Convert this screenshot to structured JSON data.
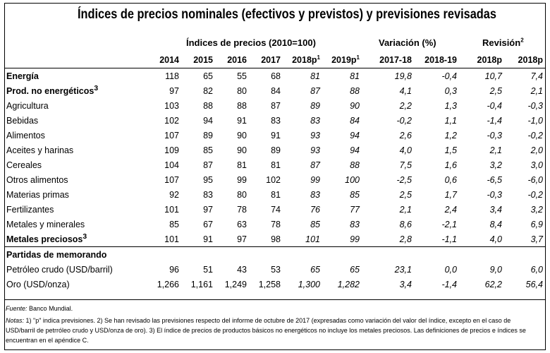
{
  "title": "Índices de precios nominales (efectivos y previstos) y previsiones revisadas",
  "group_headers": {
    "indices": "Índices de precios (2010=100)",
    "variacion": "Variación (%)",
    "revision": "Revisión",
    "revision_sup": "2"
  },
  "columns": [
    "2014",
    "2015",
    "2016",
    "2017",
    "2018p",
    "2019p",
    "2017-18",
    "2018-19",
    "2018p",
    "2018p"
  ],
  "column_sups": [
    "",
    "",
    "",
    "",
    "1",
    "1",
    "",
    "",
    "",
    ""
  ],
  "rows": [
    {
      "label": "Energía",
      "sup": "",
      "bold": true,
      "indent": 0,
      "values": [
        "118",
        "65",
        "55",
        "68",
        "81",
        "81",
        "19,8",
        "-0,4",
        "10,7",
        "7,4"
      ]
    },
    {
      "label": "Prod. no energéticos",
      "sup": "3",
      "bold": true,
      "indent": 0,
      "values": [
        "97",
        "82",
        "80",
        "84",
        "87",
        "88",
        "4,1",
        "0,3",
        "2,5",
        "2,1"
      ]
    },
    {
      "label": "Agricultura",
      "sup": "",
      "bold": false,
      "indent": 1,
      "values": [
        "103",
        "88",
        "88",
        "87",
        "89",
        "90",
        "2,2",
        "1,3",
        "-0,4",
        "-0,3"
      ]
    },
    {
      "label": "Bebidas",
      "sup": "",
      "bold": false,
      "indent": 2,
      "values": [
        "102",
        "94",
        "91",
        "83",
        "83",
        "84",
        "-0,2",
        "1,1",
        "-1,4",
        "-1,0"
      ]
    },
    {
      "label": "Alimentos",
      "sup": "",
      "bold": false,
      "indent": 2,
      "values": [
        "107",
        "89",
        "90",
        "91",
        "93",
        "94",
        "2,6",
        "1,2",
        "-0,3",
        "-0,2"
      ]
    },
    {
      "label": "Aceites y harinas",
      "sup": "",
      "bold": false,
      "indent": 3,
      "values": [
        "109",
        "85",
        "90",
        "89",
        "93",
        "94",
        "4,0",
        "1,5",
        "2,1",
        "2,0"
      ]
    },
    {
      "label": "Cereales",
      "sup": "",
      "bold": false,
      "indent": 3,
      "values": [
        "104",
        "87",
        "81",
        "81",
        "87",
        "88",
        "7,5",
        "1,6",
        "3,2",
        "3,0"
      ]
    },
    {
      "label": "Otros alimentos",
      "sup": "",
      "bold": false,
      "indent": 3,
      "values": [
        "107",
        "95",
        "99",
        "102",
        "99",
        "100",
        "-2,5",
        "0,6",
        "-6,5",
        "-6,0"
      ]
    },
    {
      "label": "Materias primas",
      "sup": "",
      "bold": false,
      "indent": 2,
      "values": [
        "92",
        "83",
        "80",
        "81",
        "83",
        "85",
        "2,5",
        "1,7",
        "-0,3",
        "-0,2"
      ]
    },
    {
      "label": "Fertilizantes",
      "sup": "",
      "bold": false,
      "indent": 1,
      "values": [
        "101",
        "97",
        "78",
        "74",
        "76",
        "77",
        "2,1",
        "2,4",
        "3,4",
        "3,2"
      ]
    },
    {
      "label": "Metales y minerales",
      "sup": "",
      "bold": false,
      "indent": 1,
      "values": [
        "85",
        "67",
        "63",
        "78",
        "85",
        "83",
        "8,6",
        "-2,1",
        "8,4",
        "6,9"
      ]
    },
    {
      "label": "Metales preciosos",
      "sup": "3",
      "bold": true,
      "indent": 0,
      "values": [
        "101",
        "91",
        "97",
        "98",
        "101",
        "99",
        "2,8",
        "-1,1",
        "4,0",
        "3,7"
      ]
    }
  ],
  "memo": {
    "label": "Partidas de memorando",
    "rows": [
      {
        "label": "Petróleo crudo (USD/barril)",
        "sup": "",
        "bold": false,
        "indent": 1,
        "values": [
          "96",
          "51",
          "43",
          "53",
          "65",
          "65",
          "23,1",
          "0,0",
          "9,0",
          "6,0"
        ]
      },
      {
        "label": "Oro (USD/onza)",
        "sup": "",
        "bold": false,
        "indent": 1,
        "values": [
          "1,266",
          "1,161",
          "1,249",
          "1,258",
          "1,300",
          "1,282",
          "3,4",
          "-1,4",
          "62,2",
          "56,4"
        ]
      }
    ]
  },
  "footer": {
    "source_label": "Fuente:",
    "source_text": "Banco Mundial.",
    "notes_label": "Notas:",
    "notes_text": "1) \"p\" indica previsiones. 2) Se han revisado las previsiones respecto del informe de octubre de 2017 (expresadas como variación del valor del índice, excepto en el caso de USD/barril de petrróleo crudo y USD/onza de oro). 3) El índice de precios de productos básicos no energéticos no incluye los metales preciosos. Las definiciones de precios e índices se encuentran en el apéndice C."
  }
}
